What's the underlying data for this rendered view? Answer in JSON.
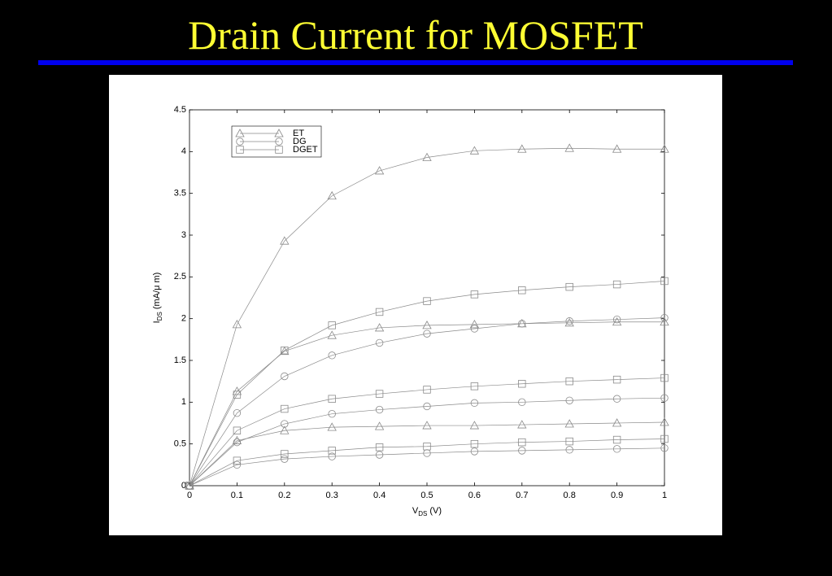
{
  "chart_data": {
    "type": "line",
    "title": "Drain Current for MOSFET",
    "xlabel": [
      "V",
      "DS",
      "(V)"
    ],
    "ylabel": [
      "I",
      "DS",
      "(mA/μ m)"
    ],
    "x": [
      0,
      0.1,
      0.2,
      0.3,
      0.4,
      0.5,
      0.6,
      0.7,
      0.8,
      0.9,
      1
    ],
    "xlim": [
      0,
      1
    ],
    "xticks": [
      0,
      0.1,
      0.2,
      0.3,
      0.4,
      0.5,
      0.6,
      0.7,
      0.8,
      0.9,
      1
    ],
    "ylim": [
      0,
      4.5
    ],
    "yticks": [
      0,
      0.5,
      1,
      1.5,
      2,
      2.5,
      3,
      3.5,
      4,
      4.5
    ],
    "legend": "upper left",
    "color": "#8a8a8a",
    "series": [
      {
        "name": "ET",
        "marker": "triangle",
        "curves": [
          [
            0,
            1.93,
            2.93,
            3.47,
            3.77,
            3.93,
            4.01,
            4.03,
            4.04,
            4.03,
            4.03
          ],
          [
            0,
            1.13,
            1.61,
            1.8,
            1.89,
            1.92,
            1.93,
            1.94,
            1.95,
            1.96,
            1.96
          ],
          [
            0,
            0.54,
            0.66,
            0.7,
            0.71,
            0.72,
            0.72,
            0.73,
            0.74,
            0.75,
            0.76
          ]
        ]
      },
      {
        "name": "DG",
        "marker": "circle",
        "curves": [
          [
            0,
            0.87,
            1.31,
            1.56,
            1.71,
            1.82,
            1.88,
            1.94,
            1.97,
            1.99,
            2.01
          ],
          [
            0,
            0.52,
            0.74,
            0.86,
            0.91,
            0.95,
            0.99,
            1.0,
            1.02,
            1.04,
            1.05
          ],
          [
            0,
            0.25,
            0.32,
            0.35,
            0.37,
            0.39,
            0.41,
            0.42,
            0.43,
            0.44,
            0.45
          ]
        ]
      },
      {
        "name": "DGET",
        "marker": "square",
        "curves": [
          [
            0,
            1.09,
            1.62,
            1.92,
            2.08,
            2.21,
            2.29,
            2.34,
            2.38,
            2.41,
            2.45
          ],
          [
            0,
            0.66,
            0.92,
            1.04,
            1.1,
            1.15,
            1.19,
            1.22,
            1.25,
            1.27,
            1.29
          ],
          [
            0,
            0.3,
            0.38,
            0.42,
            0.46,
            0.47,
            0.5,
            0.52,
            0.53,
            0.55,
            0.56
          ]
        ]
      }
    ]
  }
}
